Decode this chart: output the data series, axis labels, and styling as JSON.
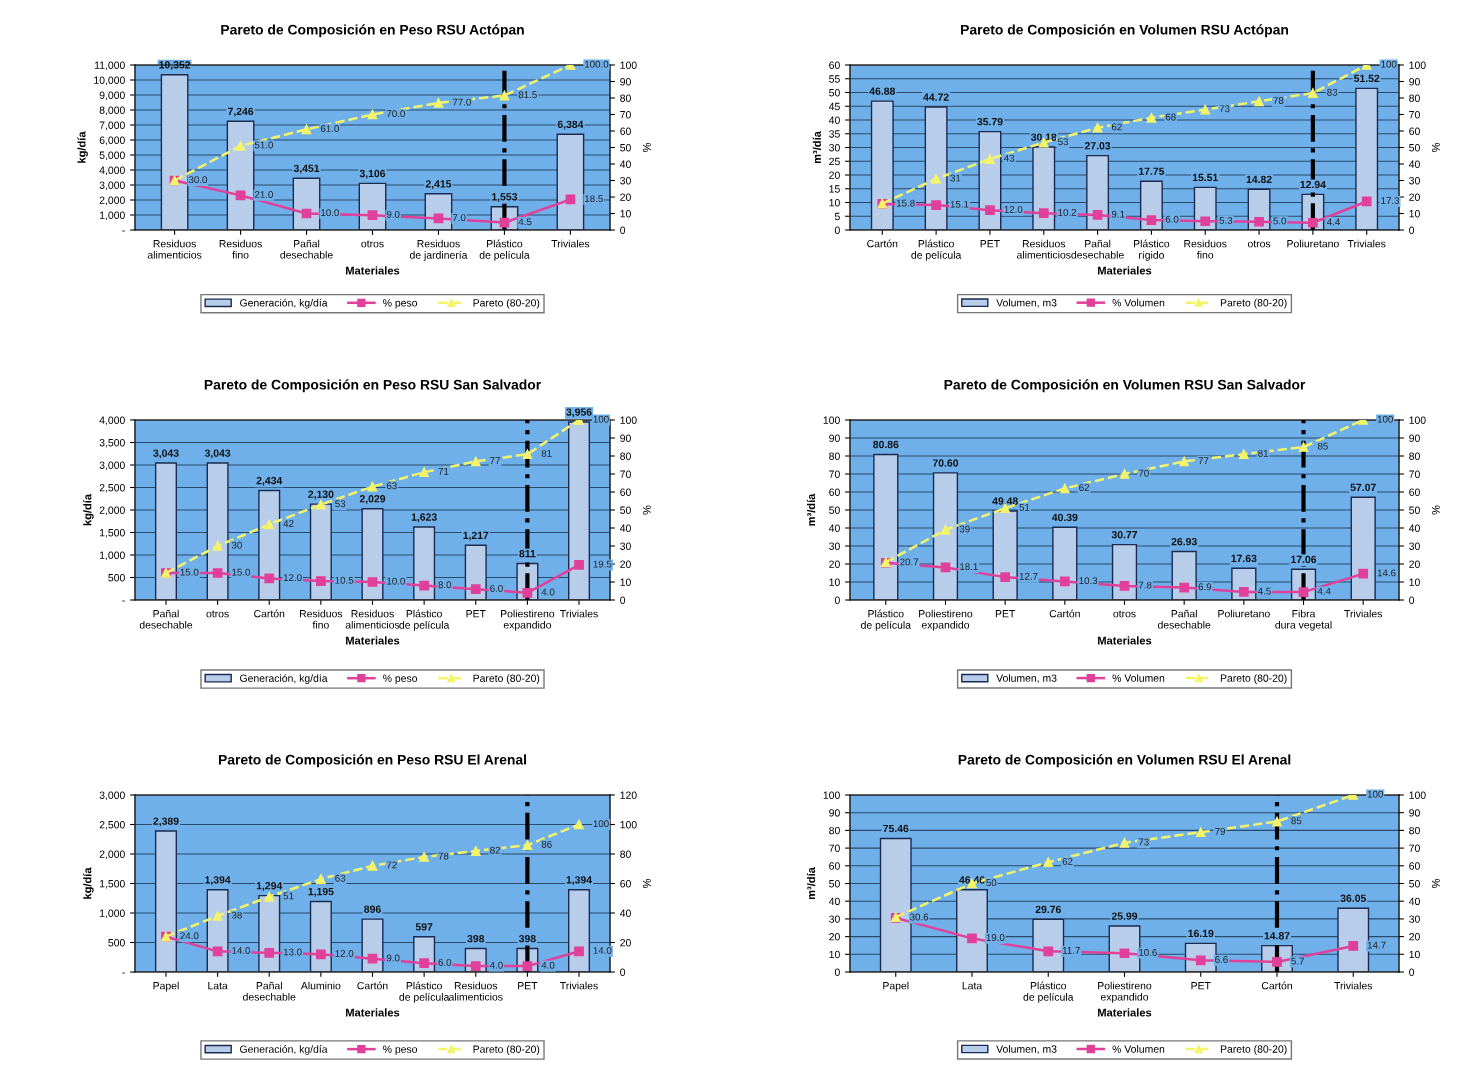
{
  "chart_data": [
    {
      "type": "bar",
      "title": "Pareto de Composición en Peso RSU Actópan",
      "xlabel": "Materiales",
      "ylabel": "kg/día",
      "y2label": "%",
      "categories": [
        "Residuos alimenticios",
        "Residuos fino",
        "Pañal desechable",
        "otros",
        "Residuos de jardinería",
        "Plástico de película",
        "Triviales"
      ],
      "series": [
        {
          "name": "Generación, kg/día",
          "color": "#b8cdea",
          "values": [
            10352,
            7246,
            3451,
            3106,
            2415,
            1553,
            6384
          ],
          "value_labels": [
            "10,352",
            "7,246",
            "3,451",
            "3,106",
            "2,415",
            "1,553",
            "6,384"
          ]
        },
        {
          "name": "% peso",
          "type": "line",
          "axis": "y2",
          "color": "#e0409a",
          "marker": "square",
          "line_style": "solid",
          "values": [
            30.0,
            21.0,
            10.0,
            9.0,
            7.0,
            4.5,
            18.5
          ],
          "value_labels": [
            "30.0",
            "21.0",
            "10.0",
            "9.0",
            "7.0",
            "4.5",
            "18.5"
          ]
        },
        {
          "name": "Pareto (80-20)",
          "type": "line",
          "axis": "y2",
          "color": "#f4f46a",
          "marker": "triangle",
          "line_style": "dashed",
          "values": [
            30.0,
            51.0,
            61.0,
            70.0,
            77.0,
            81.5,
            100.0
          ],
          "value_labels": [
            null,
            "51.0",
            "61.0",
            "70.0",
            "77.0",
            "81.5",
            "100.0"
          ]
        }
      ],
      "ylim": [
        0,
        11000
      ],
      "yticks": [
        {
          "value": 0,
          "label": "-"
        },
        {
          "value": 1000,
          "label": "1,000"
        },
        {
          "value": 2000,
          "label": "2,000"
        },
        {
          "value": 3000,
          "label": "3,000"
        },
        {
          "value": 4000,
          "label": "4,000"
        },
        {
          "value": 5000,
          "label": "5,000"
        },
        {
          "value": 6000,
          "label": "6,000"
        },
        {
          "value": 7000,
          "label": "7,000"
        },
        {
          "value": 8000,
          "label": "8,000"
        },
        {
          "value": 9000,
          "label": "9,000"
        },
        {
          "value": 10000,
          "label": "10,000"
        },
        {
          "value": 11000,
          "label": "11,000"
        }
      ],
      "y2lim": [
        0,
        100
      ],
      "y2ticks": [
        0,
        10,
        20,
        30,
        40,
        50,
        60,
        70,
        80,
        90,
        100
      ],
      "ref_lines": [
        {
          "axis": "x",
          "value": "Plástico de película",
          "color": "#000000",
          "line_style": "dashdot"
        }
      ],
      "grid": "y",
      "legend": "bottom"
    },
    {
      "type": "bar",
      "title": "Pareto de Composición en Volumen RSU Actópan",
      "xlabel": "Materiales",
      "ylabel": "m³/día",
      "y2label": "%",
      "categories": [
        "Cartón",
        "Plástico de película",
        "PET",
        "Residuos alimenticios",
        "Pañal desechable",
        "Plástico rígido",
        "Residuos fino",
        "otros",
        "Poliuretano",
        "Triviales"
      ],
      "series": [
        {
          "name": "Volumen, m3",
          "color": "#b8cdea",
          "values": [
            46.88,
            44.72,
            35.79,
            30.18,
            27.03,
            17.75,
            15.51,
            14.82,
            12.94,
            51.52
          ],
          "value_labels": [
            "46.88",
            "44.72",
            "35.79",
            "30.18",
            "27.03",
            "17.75",
            "15.51",
            "14.82",
            "12.94",
            "51.52"
          ]
        },
        {
          "name": "% Volumen",
          "type": "line",
          "axis": "y2",
          "color": "#e0409a",
          "marker": "square",
          "line_style": "solid",
          "values": [
            15.8,
            15.1,
            12.0,
            10.2,
            9.1,
            6.0,
            5.3,
            5.0,
            4.4,
            17.3
          ],
          "value_labels": [
            "15.8",
            "15.1",
            "12.0",
            "10.2",
            "9.1",
            "6.0",
            "5.3",
            "5.0",
            "4.4",
            "17.3"
          ]
        },
        {
          "name": "Pareto (80-20)",
          "type": "line",
          "axis": "y2",
          "color": "#f4f46a",
          "marker": "triangle",
          "line_style": "dashed",
          "values": [
            16,
            31,
            43,
            53,
            62,
            68,
            73,
            78,
            83,
            100
          ],
          "value_labels": [
            null,
            "31",
            "43",
            "53",
            "62",
            "68",
            "73",
            "78",
            "83",
            "100"
          ]
        }
      ],
      "ylim": [
        0,
        60
      ],
      "yticks": [
        0,
        5,
        10,
        15,
        20,
        25,
        30,
        35,
        40,
        45,
        50,
        55,
        60
      ],
      "y2lim": [
        0,
        100
      ],
      "y2ticks": [
        0,
        10,
        20,
        30,
        40,
        50,
        60,
        70,
        80,
        90,
        100
      ],
      "ref_lines": [
        {
          "axis": "x",
          "value": "Poliuretano",
          "color": "#000000",
          "line_style": "dashdot"
        }
      ],
      "grid": "y",
      "legend": "bottom"
    },
    {
      "type": "bar",
      "title": "Pareto de Composición en Peso RSU San Salvador",
      "xlabel": "Materiales",
      "ylabel": "kg/día",
      "y2label": "%",
      "categories": [
        "Pañal desechable",
        "otros",
        "Cartón",
        "Residuos fino",
        "Residuos alimenticios",
        "Plástico de película",
        "PET",
        "Poliestireno expandido",
        "Triviales"
      ],
      "series": [
        {
          "name": "Generación, kg/día",
          "color": "#b8cdea",
          "values": [
            3043,
            3043,
            2434,
            2130,
            2029,
            1623,
            1217,
            811,
            3956
          ],
          "value_labels": [
            "3,043",
            "3,043",
            "2,434",
            "2,130",
            "2,029",
            "1,623",
            "1,217",
            "811",
            "3,956"
          ]
        },
        {
          "name": "% peso",
          "type": "line",
          "axis": "y2",
          "color": "#e0409a",
          "marker": "square",
          "line_style": "solid",
          "values": [
            15.0,
            15.0,
            12.0,
            10.5,
            10.0,
            8.0,
            6.0,
            4.0,
            19.5
          ],
          "value_labels": [
            "15.0",
            "15.0",
            "12.0",
            "10.5",
            "10.0",
            "8.0",
            "6.0",
            "4.0",
            "19.5"
          ]
        },
        {
          "name": "Pareto (80-20)",
          "type": "line",
          "axis": "y2",
          "color": "#f4f46a",
          "marker": "triangle",
          "line_style": "dashed",
          "values": [
            15,
            30,
            42,
            53,
            63,
            71,
            77,
            81,
            100
          ],
          "value_labels": [
            null,
            "30",
            "42",
            "53",
            "63",
            "71",
            "77",
            "81",
            "100"
          ]
        }
      ],
      "ylim": [
        0,
        4000
      ],
      "yticks": [
        {
          "value": 0,
          "label": "-"
        },
        {
          "value": 500,
          "label": "500"
        },
        {
          "value": 1000,
          "label": "1,000"
        },
        {
          "value": 1500,
          "label": "1,500"
        },
        {
          "value": 2000,
          "label": "2,000"
        },
        {
          "value": 2500,
          "label": "2,500"
        },
        {
          "value": 3000,
          "label": "3,000"
        },
        {
          "value": 3500,
          "label": "3,500"
        },
        {
          "value": 4000,
          "label": "4,000"
        }
      ],
      "y2lim": [
        0,
        100
      ],
      "y2ticks": [
        0,
        10,
        20,
        30,
        40,
        50,
        60,
        70,
        80,
        90,
        100
      ],
      "ref_lines": [
        {
          "axis": "x",
          "value": "Poliestireno expandido",
          "color": "#000000",
          "line_style": "dashdot"
        }
      ],
      "grid": "y",
      "legend": "bottom"
    },
    {
      "type": "bar",
      "title": "Pareto de Composición en Volumen RSU San Salvador",
      "xlabel": "Materiales",
      "ylabel": "m³/día",
      "y2label": "%",
      "categories": [
        "Plástico de película",
        "Poliestireno expandido",
        "PET",
        "Cartón",
        "otros",
        "Pañal desechable",
        "Poliuretano",
        "Fibra dura vegetal",
        "Triviales"
      ],
      "series": [
        {
          "name": "Volumen, m3",
          "color": "#b8cdea",
          "values": [
            80.86,
            70.6,
            49.48,
            40.39,
            30.77,
            26.93,
            17.63,
            17.06,
            57.07
          ],
          "value_labels": [
            "80.86",
            "70.60",
            "49.48",
            "40.39",
            "30.77",
            "26.93",
            "17.63",
            "17.06",
            "57.07"
          ]
        },
        {
          "name": "% Volumen",
          "type": "line",
          "axis": "y2",
          "color": "#e0409a",
          "marker": "square",
          "line_style": "solid",
          "values": [
            20.7,
            18.1,
            12.7,
            10.3,
            7.8,
            6.9,
            4.5,
            4.4,
            14.6
          ],
          "value_labels": [
            "20.7",
            "18.1",
            "12.7",
            "10.3",
            "7.8",
            "6.9",
            "4.5",
            "4.4",
            "14.6"
          ]
        },
        {
          "name": "Pareto (80-20)",
          "type": "line",
          "axis": "y2",
          "color": "#f4f46a",
          "marker": "triangle",
          "line_style": "dashed",
          "values": [
            21,
            39,
            51,
            62,
            70,
            77,
            81,
            85,
            100
          ],
          "value_labels": [
            null,
            "39",
            "51",
            "62",
            "70",
            "77",
            "81",
            "85",
            "100"
          ]
        }
      ],
      "ylim": [
        0,
        100
      ],
      "yticks": [
        0,
        10,
        20,
        30,
        40,
        50,
        60,
        70,
        80,
        90,
        100
      ],
      "y2lim": [
        0,
        100
      ],
      "y2ticks": [
        0,
        10,
        20,
        30,
        40,
        50,
        60,
        70,
        80,
        90,
        100
      ],
      "ref_lines": [
        {
          "axis": "x",
          "value": "Fibra dura vegetal",
          "color": "#000000",
          "line_style": "dashdot"
        }
      ],
      "grid": "y",
      "legend": "bottom"
    },
    {
      "type": "bar",
      "title": "Pareto de Composición en Peso RSU El Arenal",
      "xlabel": "Materiales",
      "ylabel": "kg/día",
      "y2label": "%",
      "categories": [
        "Papel",
        "Lata",
        "Pañal desechable",
        "Aluminio",
        "Cartón",
        "Plástico de película",
        "Residuos alimenticios",
        "PET",
        "Triviales"
      ],
      "series": [
        {
          "name": "Generación, kg/día",
          "color": "#b8cdea",
          "values": [
            2389,
            1394,
            1294,
            1195,
            896,
            597,
            398,
            398,
            1394
          ],
          "value_labels": [
            "2,389",
            "1,394",
            "1,294",
            "1,195",
            "896",
            "597",
            "398",
            "398",
            "1,394"
          ]
        },
        {
          "name": "% peso",
          "type": "line",
          "axis": "y2",
          "color": "#e0409a",
          "marker": "square",
          "line_style": "solid",
          "values": [
            24.0,
            14.0,
            13.0,
            12.0,
            9.0,
            6.0,
            4.0,
            4.0,
            14.0
          ],
          "value_labels": [
            "24.0",
            "14.0",
            "13.0",
            "12.0",
            "9.0",
            "6.0",
            "4.0",
            "4.0",
            "14.0"
          ]
        },
        {
          "name": "Pareto (80-20)",
          "type": "line",
          "axis": "y2",
          "color": "#f4f46a",
          "marker": "triangle",
          "line_style": "dashed",
          "values": [
            24,
            38,
            51,
            63,
            72,
            78,
            82,
            86,
            100
          ],
          "value_labels": [
            null,
            "38",
            "51",
            "63",
            "72",
            "78",
            "82",
            "86",
            "100"
          ]
        }
      ],
      "ylim": [
        0,
        3000
      ],
      "yticks": [
        {
          "value": 0,
          "label": "-"
        },
        {
          "value": 500,
          "label": "500"
        },
        {
          "value": 1000,
          "label": "1,000"
        },
        {
          "value": 1500,
          "label": "1,500"
        },
        {
          "value": 2000,
          "label": "2,000"
        },
        {
          "value": 2500,
          "label": "2,500"
        },
        {
          "value": 3000,
          "label": "3,000"
        }
      ],
      "y2lim": [
        0,
        120
      ],
      "y2ticks": [
        0,
        20,
        40,
        60,
        80,
        100,
        120
      ],
      "ref_lines": [
        {
          "axis": "x",
          "value": "PET",
          "color": "#000000",
          "line_style": "dashdot"
        }
      ],
      "grid": "y",
      "legend": "bottom"
    },
    {
      "type": "bar",
      "title": "Pareto de Composición en Volumen RSU El Arenal",
      "xlabel": "Materiales",
      "ylabel": "m³/día",
      "y2label": "%",
      "categories": [
        "Papel",
        "Lata",
        "Plástico de película",
        "Poliestireno expandido",
        "PET",
        "Cartón",
        "Triviales"
      ],
      "series": [
        {
          "name": "Volumen, m3",
          "color": "#b8cdea",
          "values": [
            75.46,
            46.46,
            29.76,
            25.99,
            16.19,
            14.87,
            36.05
          ],
          "value_labels": [
            "75.46",
            "46.46",
            "29.76",
            "25.99",
            "16.19",
            "14.87",
            "36.05"
          ]
        },
        {
          "name": "% Volumen",
          "type": "line",
          "axis": "y2",
          "color": "#e0409a",
          "marker": "square",
          "line_style": "solid",
          "values": [
            30.6,
            19.0,
            11.7,
            10.6,
            6.6,
            5.7,
            14.7
          ],
          "value_labels": [
            "30.6",
            "19.0",
            "11.7",
            "10.6",
            "6.6",
            "5.7",
            "14.7"
          ]
        },
        {
          "name": "Pareto (80-20)",
          "type": "line",
          "axis": "y2",
          "color": "#f4f46a",
          "marker": "triangle",
          "line_style": "dashed",
          "values": [
            31,
            50,
            62,
            73,
            79,
            85,
            100
          ],
          "value_labels": [
            null,
            "50",
            "62",
            "73",
            "79",
            "85",
            "100"
          ]
        }
      ],
      "ylim": [
        0,
        100
      ],
      "yticks": [
        0,
        10,
        20,
        30,
        40,
        50,
        60,
        70,
        80,
        90,
        100
      ],
      "y2lim": [
        0,
        100
      ],
      "y2ticks": [
        0,
        10,
        20,
        30,
        40,
        50,
        60,
        70,
        80,
        90,
        100
      ],
      "ref_lines": [
        {
          "axis": "x",
          "value": "Cartón",
          "color": "#000000",
          "line_style": "dashdot"
        }
      ],
      "grid": "y",
      "legend": "bottom"
    }
  ]
}
